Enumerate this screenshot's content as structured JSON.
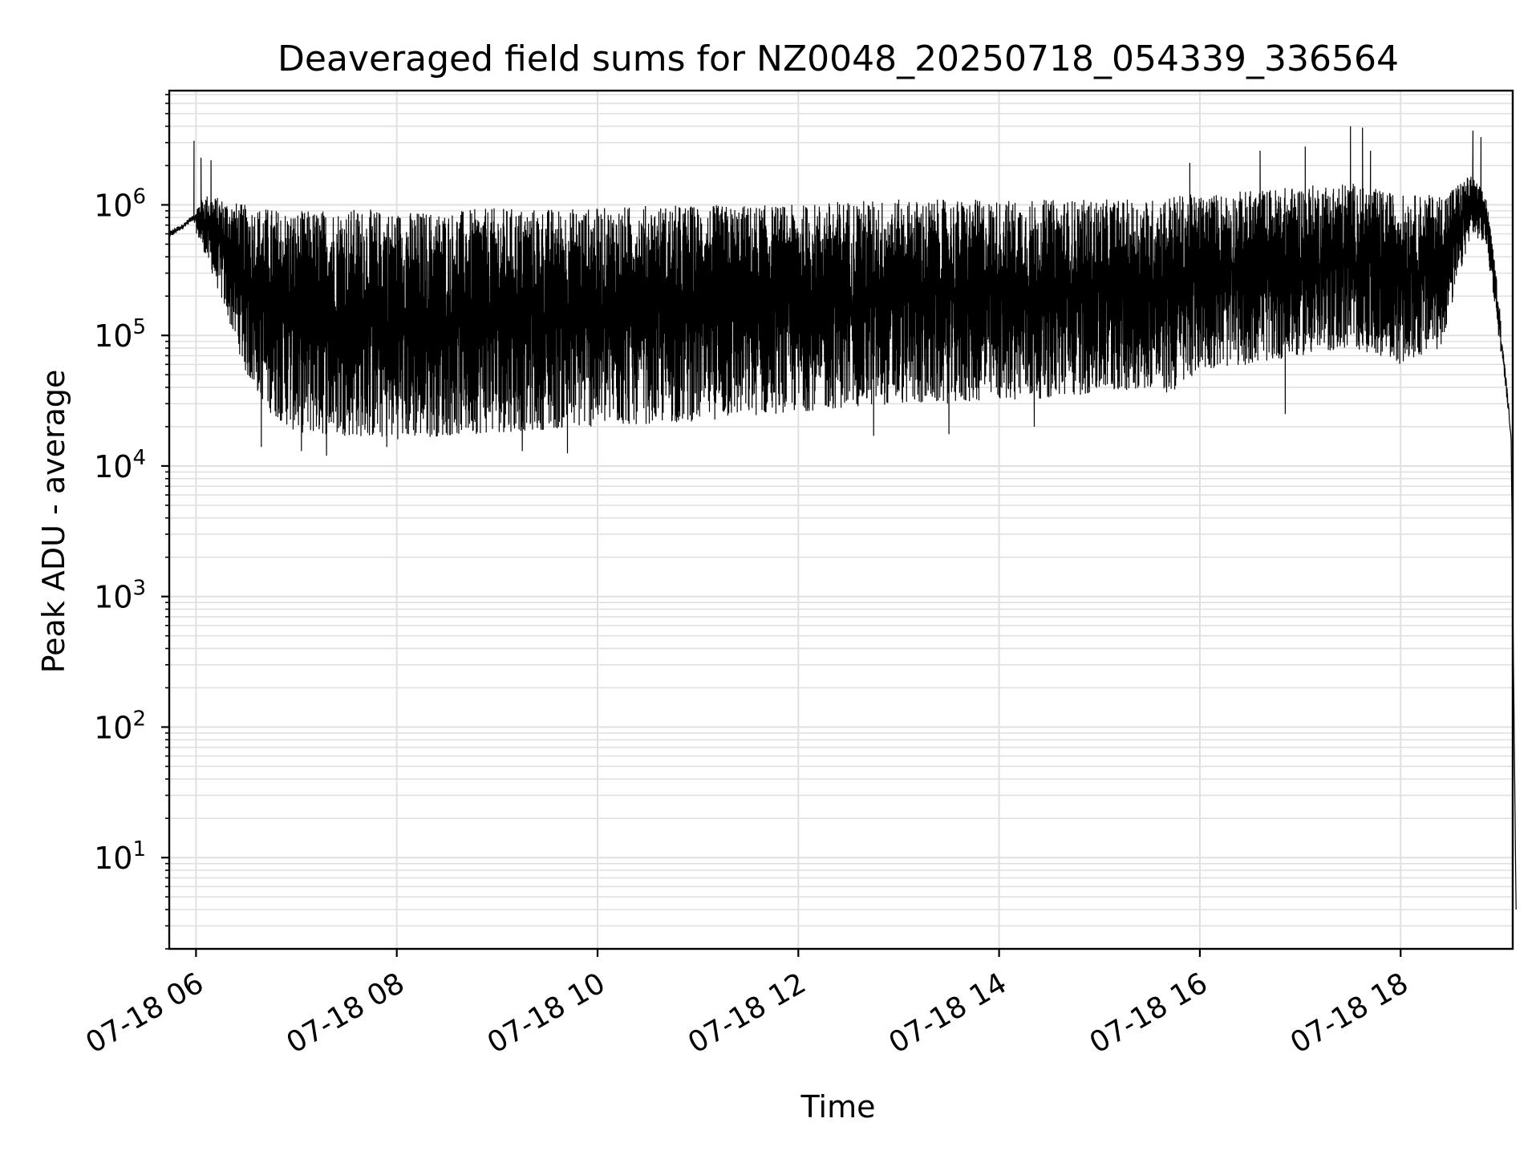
{
  "chart_data": {
    "type": "line",
    "title": "Deaveraged field sums for NZ0048_20250718_054339_336564",
    "xlabel": "Time",
    "ylabel": "Peak ADU - average",
    "yscale": "log",
    "ylim": [
      2,
      7500000
    ],
    "xlim": [
      "07-18 05:44",
      "07-18 19:07"
    ],
    "grid": true,
    "line_color": "#000000",
    "grid_color": "#e0e0e0",
    "x_ticks": [
      {
        "label": "07-18 06",
        "hour": 6
      },
      {
        "label": "07-18 08",
        "hour": 8
      },
      {
        "label": "07-18 10",
        "hour": 10
      },
      {
        "label": "07-18 12",
        "hour": 12
      },
      {
        "label": "07-18 14",
        "hour": 14
      },
      {
        "label": "07-18 16",
        "hour": 16
      },
      {
        "label": "07-18 18",
        "hour": 18
      }
    ],
    "y_ticks": [
      {
        "base": "10",
        "exp": "1",
        "value": 10
      },
      {
        "base": "10",
        "exp": "2",
        "value": 100
      },
      {
        "base": "10",
        "exp": "3",
        "value": 1000
      },
      {
        "base": "10",
        "exp": "4",
        "value": 10000
      },
      {
        "base": "10",
        "exp": "5",
        "value": 100000
      },
      {
        "base": "10",
        "exp": "6",
        "value": 1000000
      }
    ],
    "envelope_hours": [
      5.73,
      5.85,
      5.97,
      6.1,
      6.3,
      6.5,
      6.75,
      7.0,
      7.5,
      8.0,
      8.5,
      9.0,
      9.5,
      10.0,
      10.5,
      11.0,
      11.5,
      12.0,
      12.5,
      13.0,
      13.5,
      14.0,
      14.5,
      15.0,
      15.5,
      15.7,
      16.0,
      16.5,
      17.0,
      17.5,
      17.8,
      18.0,
      18.4,
      18.7,
      18.85,
      18.95,
      19.05,
      19.1,
      19.15
    ],
    "upper_envelope": [
      700000,
      750000,
      900000,
      1200000,
      1100000,
      1000000,
      950000,
      900000,
      950000,
      900000,
      900000,
      950000,
      950000,
      950000,
      1000000,
      1000000,
      1000000,
      1000000,
      1100000,
      1100000,
      1100000,
      1100000,
      1100000,
      1100000,
      1100000,
      1200000,
      1200000,
      1300000,
      1400000,
      1500000,
      1300000,
      1200000,
      1200000,
      1700000,
      1200000,
      300000,
      60000,
      20000,
      4
    ],
    "lower_envelope": [
      500000,
      600000,
      700000,
      400000,
      150000,
      50000,
      25000,
      18000,
      17000,
      16000,
      17000,
      18000,
      19000,
      20000,
      21000,
      22000,
      24000,
      26000,
      28000,
      30000,
      30000,
      32000,
      33000,
      36000,
      40000,
      35000,
      55000,
      60000,
      70000,
      80000,
      70000,
      60000,
      80000,
      600000,
      500000,
      150000,
      30000,
      15000,
      4
    ],
    "spikes": [
      {
        "hour": 5.98,
        "value": 3100000
      },
      {
        "hour": 6.05,
        "value": 2300000
      },
      {
        "hour": 6.15,
        "value": 2200000
      },
      {
        "hour": 15.9,
        "value": 2100000
      },
      {
        "hour": 16.6,
        "value": 2600000
      },
      {
        "hour": 17.05,
        "value": 2800000
      },
      {
        "hour": 17.5,
        "value": 4000000
      },
      {
        "hour": 17.62,
        "value": 3900000
      },
      {
        "hour": 17.7,
        "value": 2600000
      },
      {
        "hour": 18.72,
        "value": 3700000
      },
      {
        "hour": 18.8,
        "value": 3300000
      }
    ],
    "dips": [
      {
        "hour": 6.65,
        "value": 14000
      },
      {
        "hour": 7.05,
        "value": 13000
      },
      {
        "hour": 7.3,
        "value": 12000
      },
      {
        "hour": 7.9,
        "value": 14000
      },
      {
        "hour": 9.25,
        "value": 13000
      },
      {
        "hour": 9.7,
        "value": 12500
      },
      {
        "hour": 12.75,
        "value": 17000
      },
      {
        "hour": 13.5,
        "value": 17500
      },
      {
        "hour": 14.35,
        "value": 20000
      },
      {
        "hour": 16.85,
        "value": 25000
      }
    ]
  }
}
